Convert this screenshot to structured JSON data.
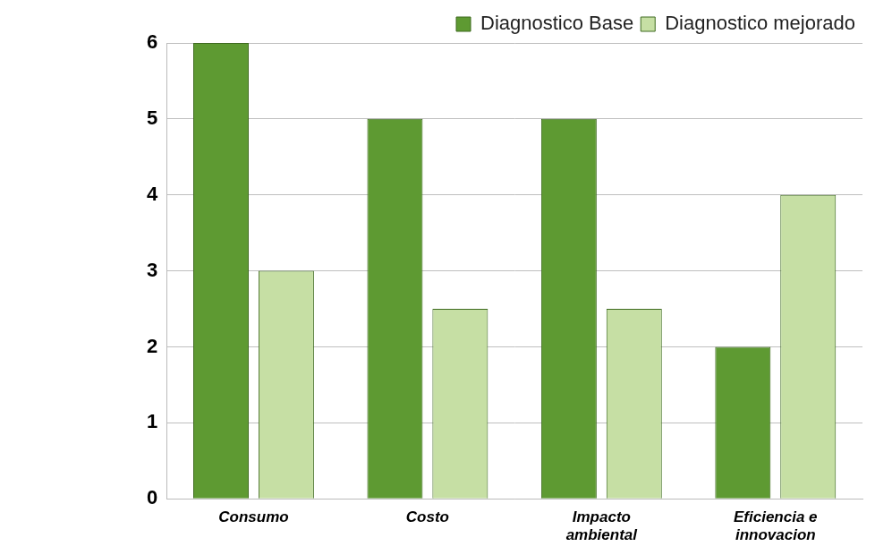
{
  "chart_data": {
    "type": "bar",
    "categories": [
      "Consumo",
      "Costo",
      "Impacto ambiental",
      "Eficiencia e innovacion"
    ],
    "series": [
      {
        "name": "Diagnostico Base",
        "color": "#5e9a32",
        "values": [
          6,
          5,
          5,
          2
        ]
      },
      {
        "name": "Diagnostico mejorado",
        "color": "#c6dfa4",
        "values": [
          3,
          2.5,
          2.5,
          4
        ]
      }
    ],
    "ylim": [
      0,
      6
    ],
    "yticks": [
      0,
      1,
      2,
      3,
      4,
      5,
      6
    ],
    "grid": true,
    "legend": "top-right"
  }
}
